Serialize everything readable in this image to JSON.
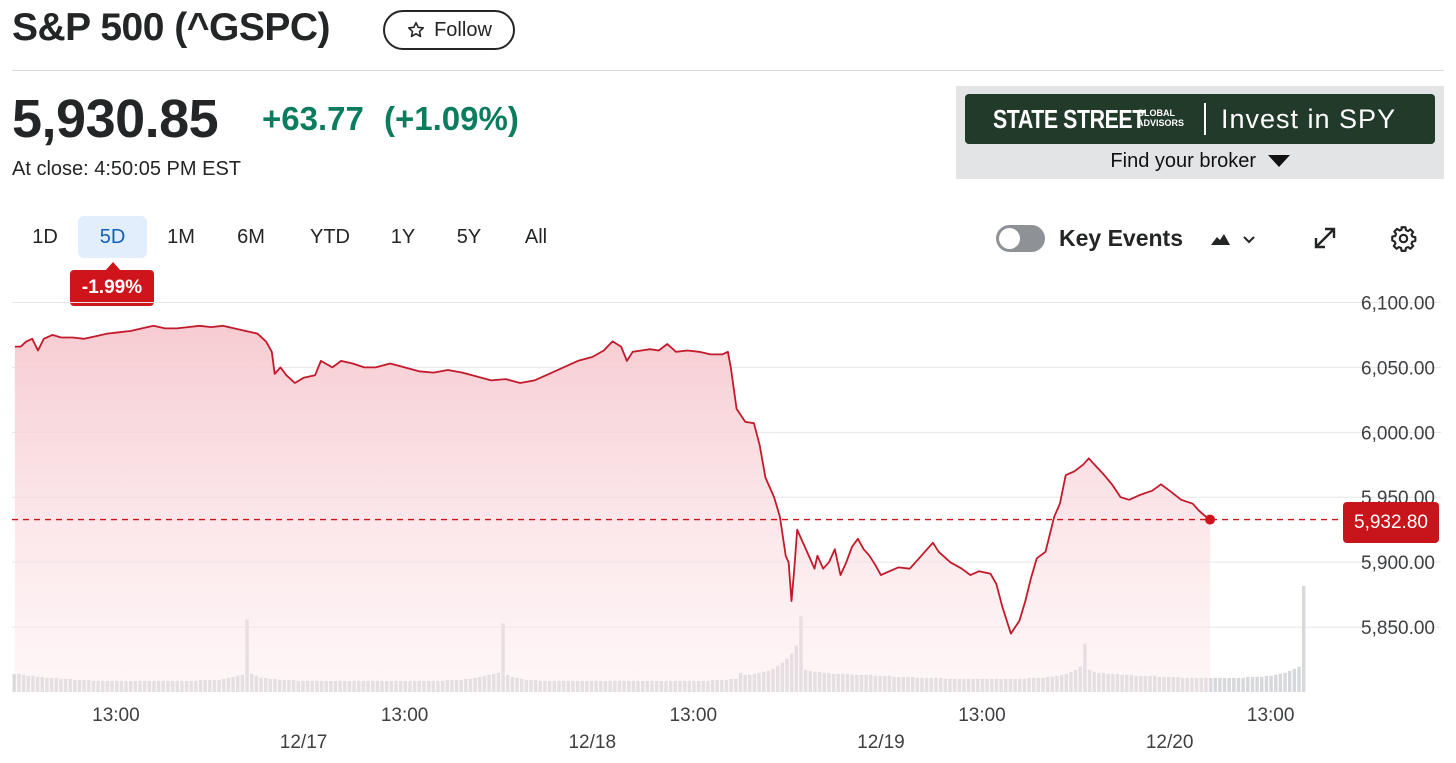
{
  "header": {
    "title": "S&P 500 (^GSPC)",
    "follow_label": "Follow",
    "price": "5,930.85",
    "change": "+63.77",
    "change_pct": "(+1.09%)",
    "close_time": "At close: 4:50:05 PM EST"
  },
  "ad": {
    "brand": "STATE STREET",
    "brand_sub": "GLOBAL\nADVISORS",
    "cta": "Invest in SPY",
    "broker": "Find your broker"
  },
  "toolbar": {
    "ranges": [
      "1D",
      "5D",
      "1M",
      "6M",
      "YTD",
      "1Y",
      "5Y",
      "All"
    ],
    "active_range": "5D",
    "period_change": "-1.99%",
    "key_events_label": "Key Events",
    "key_events_on": false
  },
  "colors": {
    "up": "#0b7d5e",
    "down": "#d0141b",
    "line": "#c21a2a",
    "fill": "#f7d0d5",
    "active_tab_bg": "#e2eefb",
    "active_tab_text": "#1360b8"
  },
  "icons": {
    "follow": "star-icon",
    "chart_type": "mountain-chart-icon",
    "dropdown": "chevron-down-icon",
    "expand": "expand-icon",
    "settings": "gear-icon",
    "broker_caret": "caret-down-icon"
  },
  "chart_data": {
    "type": "area",
    "x_ticks": [
      {
        "t": 1.35,
        "time": "13:00"
      },
      {
        "t": 2,
        "date": "12/17"
      },
      {
        "t": 2.35,
        "time": "13:00"
      },
      {
        "t": 3,
        "date": "12/18"
      },
      {
        "t": 3.35,
        "time": "13:00"
      },
      {
        "t": 4,
        "date": "12/19"
      },
      {
        "t": 4.35,
        "time": "13:00"
      },
      {
        "t": 5,
        "date": "12/20"
      },
      {
        "t": 5.35,
        "time": "13:00"
      }
    ],
    "xlim": [
      0.99,
      5.94
    ],
    "ylim": [
      5800,
      6115
    ],
    "y_ticks": [
      6100,
      6050,
      6000,
      5950,
      5900,
      5850
    ],
    "y_tick_labels": [
      "6,100.00",
      "6,050.00",
      "6,000.00",
      "5,950.00",
      "5,900.00",
      "5,850.00"
    ],
    "reference_line": {
      "value": 5932.8,
      "label": "5,932.80"
    },
    "last_price": 5932.8,
    "grid": true,
    "series": [
      {
        "values": [
          [
            1.0,
            6066
          ],
          [
            1.02,
            6066
          ],
          [
            1.04,
            6070
          ],
          [
            1.06,
            6072
          ],
          [
            1.08,
            6063
          ],
          [
            1.1,
            6072
          ],
          [
            1.13,
            6075
          ],
          [
            1.16,
            6073
          ],
          [
            1.2,
            6073
          ],
          [
            1.24,
            6072
          ],
          [
            1.28,
            6074
          ],
          [
            1.32,
            6076
          ],
          [
            1.36,
            6077
          ],
          [
            1.4,
            6078
          ],
          [
            1.44,
            6080
          ],
          [
            1.48,
            6082
          ],
          [
            1.52,
            6080
          ],
          [
            1.56,
            6080
          ],
          [
            1.6,
            6081
          ],
          [
            1.64,
            6082
          ],
          [
            1.68,
            6081
          ],
          [
            1.72,
            6082
          ],
          [
            1.76,
            6080
          ],
          [
            1.8,
            6078
          ],
          [
            1.84,
            6076
          ],
          [
            1.87,
            6070
          ],
          [
            1.89,
            6062
          ],
          [
            1.9,
            6045
          ],
          [
            1.92,
            6050
          ],
          [
            1.94,
            6044
          ],
          [
            1.97,
            6038
          ],
          [
            2.0,
            6042
          ],
          [
            2.04,
            6044
          ],
          [
            2.06,
            6055
          ],
          [
            2.1,
            6050
          ],
          [
            2.13,
            6055
          ],
          [
            2.17,
            6053
          ],
          [
            2.21,
            6050
          ],
          [
            2.25,
            6050
          ],
          [
            2.3,
            6053
          ],
          [
            2.35,
            6050
          ],
          [
            2.4,
            6047
          ],
          [
            2.45,
            6046
          ],
          [
            2.5,
            6048
          ],
          [
            2.55,
            6046
          ],
          [
            2.6,
            6043
          ],
          [
            2.65,
            6040
          ],
          [
            2.7,
            6041
          ],
          [
            2.75,
            6038
          ],
          [
            2.8,
            6040
          ],
          [
            2.85,
            6045
          ],
          [
            2.9,
            6050
          ],
          [
            2.95,
            6055
          ],
          [
            3.0,
            6058
          ],
          [
            3.04,
            6063
          ],
          [
            3.07,
            6070
          ],
          [
            3.1,
            6066
          ],
          [
            3.12,
            6055
          ],
          [
            3.14,
            6062
          ],
          [
            3.17,
            6063
          ],
          [
            3.2,
            6064
          ],
          [
            3.23,
            6063
          ],
          [
            3.26,
            6068
          ],
          [
            3.29,
            6062
          ],
          [
            3.33,
            6063
          ],
          [
            3.37,
            6062
          ],
          [
            3.41,
            6060
          ],
          [
            3.45,
            6060
          ],
          [
            3.47,
            6062
          ],
          [
            3.48,
            6050
          ],
          [
            3.5,
            6018
          ],
          [
            3.53,
            6008
          ],
          [
            3.56,
            6007
          ],
          [
            3.58,
            5990
          ],
          [
            3.6,
            5965
          ],
          [
            3.63,
            5950
          ],
          [
            3.65,
            5935
          ],
          [
            3.67,
            5905
          ],
          [
            3.68,
            5900
          ],
          [
            3.69,
            5870
          ],
          [
            3.7,
            5895
          ],
          [
            3.71,
            5925
          ],
          [
            3.73,
            5915
          ],
          [
            3.75,
            5905
          ],
          [
            3.77,
            5895
          ],
          [
            3.78,
            5905
          ],
          [
            3.8,
            5895
          ],
          [
            3.82,
            5900
          ],
          [
            3.84,
            5910
          ],
          [
            3.86,
            5890
          ],
          [
            3.88,
            5900
          ],
          [
            3.9,
            5912
          ],
          [
            3.92,
            5918
          ],
          [
            3.94,
            5910
          ],
          [
            3.96,
            5905
          ],
          [
            3.98,
            5898
          ],
          [
            4.0,
            5890
          ],
          [
            4.03,
            5893
          ],
          [
            4.06,
            5896
          ],
          [
            4.1,
            5895
          ],
          [
            4.14,
            5905
          ],
          [
            4.18,
            5915
          ],
          [
            4.2,
            5908
          ],
          [
            4.24,
            5900
          ],
          [
            4.28,
            5895
          ],
          [
            4.31,
            5890
          ],
          [
            4.34,
            5893
          ],
          [
            4.38,
            5891
          ],
          [
            4.4,
            5883
          ],
          [
            4.42,
            5866
          ],
          [
            4.45,
            5845
          ],
          [
            4.48,
            5855
          ],
          [
            4.5,
            5870
          ],
          [
            4.52,
            5888
          ],
          [
            4.54,
            5903
          ],
          [
            4.57,
            5908
          ],
          [
            4.6,
            5935
          ],
          [
            4.62,
            5945
          ],
          [
            4.64,
            5967
          ],
          [
            4.67,
            5970
          ],
          [
            4.7,
            5975
          ],
          [
            4.72,
            5980
          ],
          [
            4.74,
            5975
          ],
          [
            4.77,
            5968
          ],
          [
            4.8,
            5960
          ],
          [
            4.83,
            5950
          ],
          [
            4.86,
            5948
          ],
          [
            4.9,
            5952
          ],
          [
            4.94,
            5955
          ],
          [
            4.97,
            5960
          ],
          [
            5.0,
            5955
          ],
          [
            5.04,
            5948
          ],
          [
            5.08,
            5945
          ],
          [
            5.1,
            5940
          ],
          [
            5.12,
            5936
          ],
          [
            5.14,
            5932.8
          ]
        ]
      }
    ],
    "volume": {
      "note": "relative",
      "values": [
        18,
        18,
        17,
        16,
        16,
        15,
        15,
        14,
        14,
        14,
        13,
        13,
        13,
        12,
        12,
        12,
        12,
        11,
        11,
        11,
        11,
        11,
        11,
        11,
        11,
        11,
        11,
        11,
        11,
        11,
        11,
        11,
        11,
        11,
        11,
        11,
        11,
        11,
        11,
        11,
        12,
        12,
        12,
        12,
        12,
        13,
        14,
        15,
        16,
        17,
        72,
        18,
        16,
        14,
        14,
        13,
        13,
        12,
        12,
        12,
        12,
        11,
        11,
        11,
        11,
        11,
        11,
        11,
        11,
        11,
        11,
        11,
        11,
        11,
        11,
        11,
        11,
        11,
        11,
        11,
        11,
        11,
        11,
        11,
        11,
        11,
        11,
        11,
        11,
        11,
        11,
        11,
        11,
        12,
        12,
        12,
        12,
        13,
        13,
        14,
        15,
        16,
        17,
        18,
        19,
        68,
        17,
        15,
        14,
        13,
        12,
        12,
        12,
        11,
        11,
        11,
        11,
        11,
        11,
        11,
        11,
        11,
        11,
        11,
        11,
        11,
        11,
        11,
        11,
        11,
        11,
        11,
        11,
        11,
        11,
        11,
        11,
        11,
        11,
        11,
        11,
        11,
        11,
        11,
        11,
        11,
        11,
        11,
        11,
        11,
        12,
        12,
        12,
        12,
        13,
        13,
        19,
        17,
        17,
        18,
        19,
        20,
        21,
        23,
        26,
        29,
        33,
        38,
        46,
        75,
        22,
        21,
        20,
        20,
        19,
        19,
        18,
        18,
        18,
        18,
        17,
        17,
        17,
        17,
        17,
        16,
        16,
        16,
        16,
        15,
        15,
        15,
        15,
        15,
        14,
        14,
        14,
        14,
        14,
        14,
        13,
        13,
        13,
        13,
        13,
        13,
        13,
        13,
        13,
        13,
        13,
        13,
        13,
        13,
        13,
        13,
        13,
        13,
        14,
        14,
        14,
        14,
        15,
        15,
        16,
        17,
        18,
        20,
        22,
        25,
        48,
        22,
        20,
        19,
        19,
        18,
        18,
        18,
        17,
        17,
        17,
        16,
        16,
        16,
        16,
        16,
        15,
        15,
        15,
        15,
        15,
        14,
        14,
        14,
        14,
        14,
        14,
        14,
        14,
        14,
        14,
        14,
        14,
        14,
        14,
        15,
        15,
        15,
        15,
        16,
        16,
        17,
        18,
        19,
        21,
        23,
        25,
        105
      ]
    }
  }
}
